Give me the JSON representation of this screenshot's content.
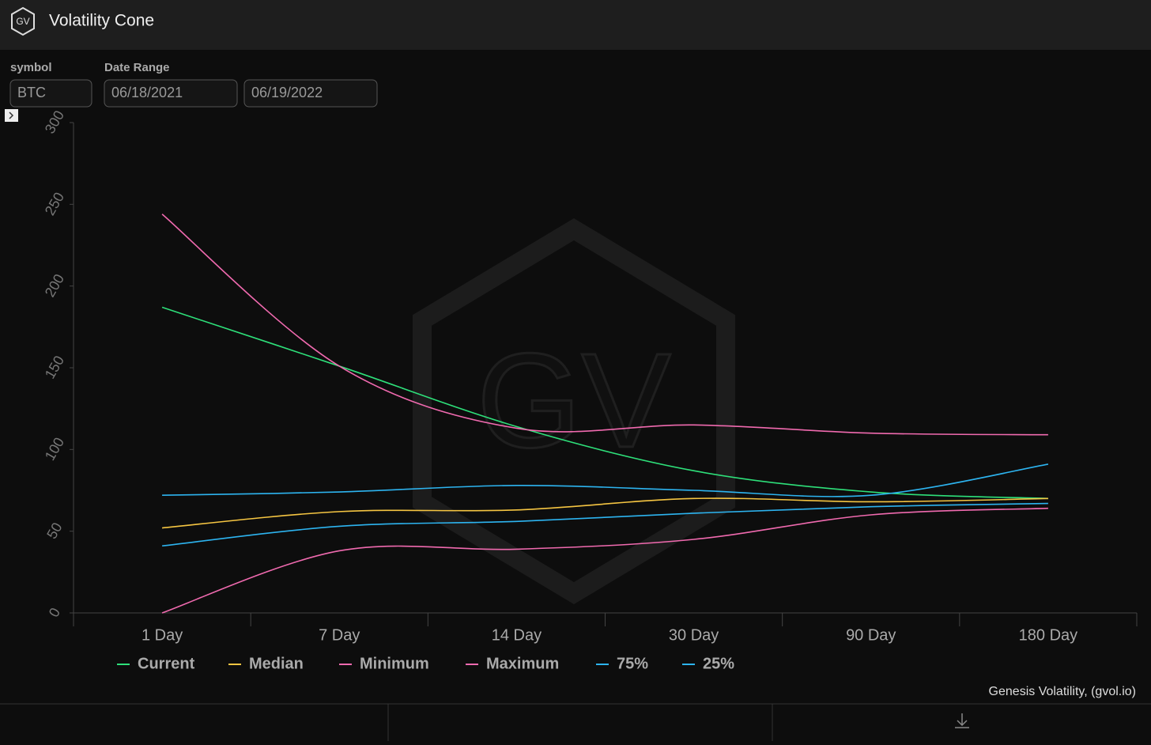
{
  "header": {
    "logo": "GV",
    "title": "Volatility Cone"
  },
  "filters": {
    "symbol_label": "symbol",
    "symbol": "BTC",
    "date_label": "Date Range",
    "start": "06/18/2021",
    "end": "06/19/2022"
  },
  "chart_data": {
    "type": "line",
    "watermark": "GV",
    "categories": [
      "1 Day",
      "7 Day",
      "14 Day",
      "30 Day",
      "90 Day",
      "180 Day"
    ],
    "ylim": [
      0,
      300
    ],
    "yticks": [
      0,
      50,
      100,
      150,
      200,
      250,
      300
    ],
    "series": [
      {
        "name": "Current",
        "color": "#2ee07a",
        "values": [
          187,
          151,
          114,
          87,
          74,
          70
        ]
      },
      {
        "name": "Median",
        "color": "#f5c542",
        "values": [
          52,
          62,
          63,
          70,
          68,
          70
        ]
      },
      {
        "name": "Minimum",
        "color": "#f06aaf",
        "values": [
          0,
          38,
          39,
          45,
          60,
          64
        ]
      },
      {
        "name": "Maximum",
        "color": "#f06aaf",
        "values": [
          244,
          151,
          113,
          115,
          110,
          109
        ]
      },
      {
        "name": "75%",
        "color": "#2db4f0",
        "values": [
          72,
          74,
          78,
          75,
          72,
          91
        ]
      },
      {
        "name": "25%",
        "color": "#2db4f0",
        "values": [
          41,
          53,
          56,
          61,
          65,
          67
        ]
      }
    ],
    "credit": "Genesis Volatility, (gvol.io)"
  }
}
